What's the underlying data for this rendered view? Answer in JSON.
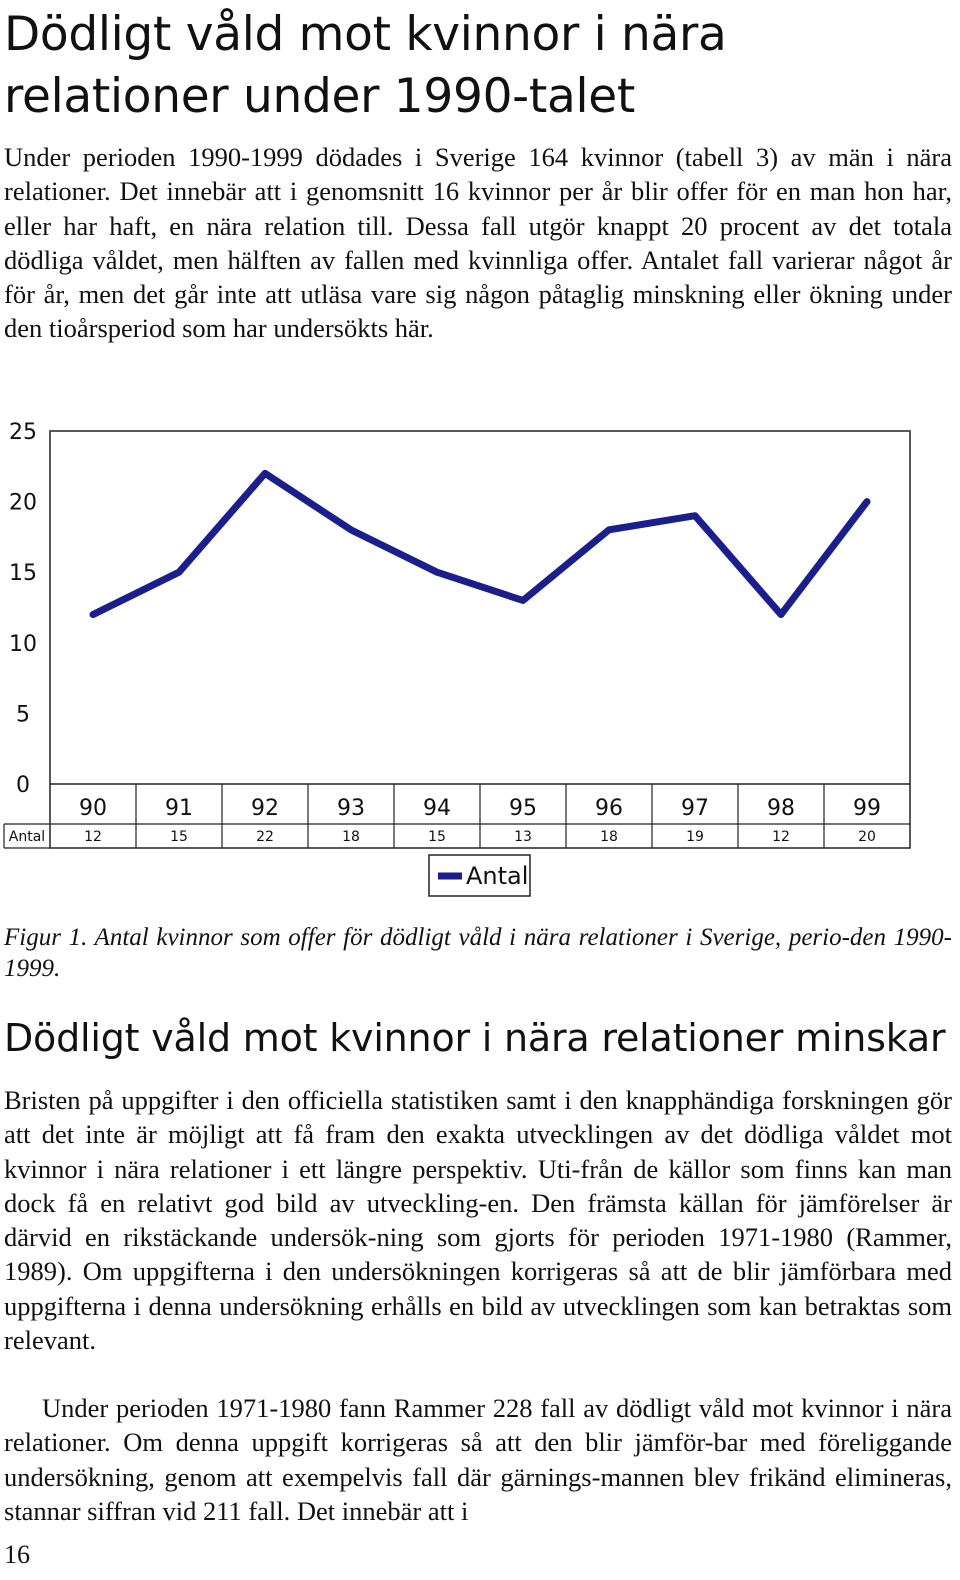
{
  "heading": "Dödligt våld mot kvinnor i nära relationer under 1990-talet",
  "paragraph1": "Under perioden 1990-1999 dödades i Sverige 164 kvinnor (tabell 3) av män i nära relationer. Det innebär att i genomsnitt 16 kvinnor per år blir offer för en man hon har, eller har haft, en nära relation till. Dessa fall utgör knappt 20 procent av det totala dödliga våldet, men hälften av fallen med kvinnliga offer. Antalet fall varierar något år för år, men det går inte att utläsa vare sig någon påtaglig minskning eller ökning under den tioårsperiod som har undersökts här.",
  "figure_caption": "Figur 1. Antal kvinnor som offer för dödligt våld i nära relationer i Sverige, perio-den 1990-1999.",
  "subheading": "Dödligt våld mot kvinnor i nära relationer minskar",
  "paragraph2": "Bristen på uppgifter i den officiella statistiken samt i den knapphändiga forskningen gör att det inte är möjligt att få fram den exakta utvecklingen av det dödliga våldet mot kvinnor i nära relationer i ett längre perspektiv. Uti-från de källor som finns kan man dock få en relativt god bild av utveckling-en. Den främsta källan för jämförelser är därvid en rikstäckande undersök-ning som gjorts för perioden 1971-1980 (Rammer, 1989). Om uppgifterna i den undersökningen korrigeras så att de blir jämförbara med uppgifterna i denna undersökning erhålls en bild av utvecklingen som kan betraktas som relevant.",
  "paragraph3": "Under perioden 1971-1980 fann Rammer 228 fall av dödligt våld mot kvinnor i nära relationer. Om denna uppgift korrigeras så att den blir jämför-bar med föreliggande undersökning, genom att exempelvis fall där gärnings-mannen blev frikänd elimineras, stannar siffran vid 211 fall. Det innebär att i",
  "page_number": "16",
  "chart_data": {
    "type": "line",
    "categories": [
      "90",
      "91",
      "92",
      "93",
      "94",
      "95",
      "96",
      "97",
      "98",
      "99"
    ],
    "series": [
      {
        "name": "Antal",
        "values": [
          12,
          15,
          22,
          18,
          15,
          13,
          18,
          19,
          12,
          20
        ],
        "color": "#1a1f8c"
      }
    ],
    "ylim": [
      0,
      25
    ],
    "yticks": [
      "0",
      "5",
      "10",
      "15",
      "20",
      "25"
    ],
    "grid": false,
    "data_table": true,
    "data_table_row_label": "Antal",
    "data_table_values": [
      "12",
      "15",
      "22",
      "18",
      "15",
      "13",
      "18",
      "19",
      "12",
      "20"
    ],
    "legend": "bottom-center"
  }
}
